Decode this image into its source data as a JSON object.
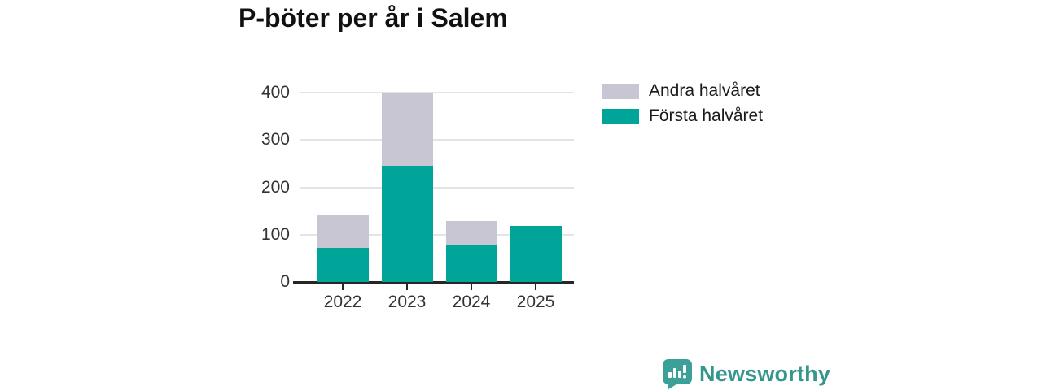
{
  "chart_data": {
    "type": "bar",
    "stacked": true,
    "title": "P-böter per år i Salem",
    "categories": [
      "2022",
      "2023",
      "2024",
      "2025"
    ],
    "series": [
      {
        "name": "Första halvåret",
        "color": "#00a498",
        "values": [
          72,
          245,
          79,
          118
        ]
      },
      {
        "name": "Andra halvåret",
        "color": "#c8c6d2",
        "values": [
          70,
          155,
          50,
          0
        ]
      }
    ],
    "totals": [
      142,
      400,
      129,
      118
    ],
    "xlabel": "",
    "ylabel": "",
    "ylim": [
      0,
      400
    ],
    "yticks": [
      0,
      100,
      200,
      300,
      400
    ],
    "grid": true,
    "legend_position": "top-right"
  },
  "legend": {
    "items": [
      {
        "label": "Andra halvåret",
        "color": "#c8c6d2"
      },
      {
        "label": "Första halvåret",
        "color": "#00a498"
      }
    ]
  },
  "branding": {
    "name": "Newsworthy",
    "text_color": "#35968e",
    "icon_color": "#3aa098"
  },
  "style": {
    "axis_color": "#262626",
    "grid_color": "#e4e4e6",
    "label_color": "#333333",
    "background": "#ffffff"
  }
}
